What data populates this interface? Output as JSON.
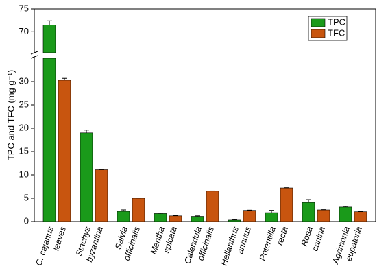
{
  "chart_data": {
    "type": "bar",
    "ylabel": "TPC and TFC (mg g⁻¹)",
    "categories": [
      [
        "C. cajanus",
        "leaves"
      ],
      [
        "Stachys",
        "byzantina"
      ],
      [
        "Salvia",
        "officinalis"
      ],
      [
        "Mentha",
        "spicata"
      ],
      [
        "Calendula",
        "officinalis"
      ],
      [
        "Helianthus",
        "annuus"
      ],
      [
        "Potentilla",
        "recta"
      ],
      [
        "Rosa",
        "canina"
      ],
      [
        "Agrimonia",
        "eupatoria"
      ]
    ],
    "series": [
      {
        "name": "TPC",
        "color": "#1a9a1a",
        "values": [
          71.5,
          19,
          2.2,
          1.7,
          1.1,
          0.3,
          1.9,
          4.1,
          3.1
        ],
        "errors": [
          0.9,
          0.6,
          0.3,
          0.1,
          0.1,
          0.1,
          0.5,
          0.6,
          0.15
        ]
      },
      {
        "name": "TFC",
        "color": "#c8550f",
        "values": [
          30.3,
          11.1,
          5.0,
          1.2,
          6.5,
          2.4,
          7.2,
          2.5,
          2.1
        ],
        "errors": [
          0.4,
          0.05,
          0.05,
          0.05,
          0.05,
          0.05,
          0.05,
          0.05,
          0.05
        ]
      }
    ],
    "ylim": [
      0,
      75
    ],
    "axis_break": [
      35,
      66
    ],
    "yticks": [
      0,
      5,
      10,
      15,
      20,
      25,
      30,
      70,
      75
    ],
    "legend": "upper right"
  }
}
